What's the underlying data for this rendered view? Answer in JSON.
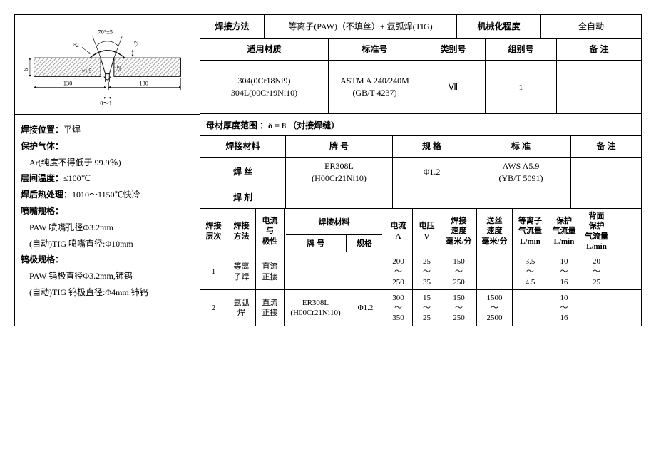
{
  "diagram": {
    "angle_label": "70°±5",
    "gap_top_left": "≈2",
    "tol_le2_right": "≤2",
    "height_6": "6",
    "gap_1_5": "≈1.5",
    "tol_le5": "≤5",
    "dim_130_left": "130",
    "dim_130_right": "130",
    "root_gap": "0～1",
    "hatch_color": "#888",
    "line_color": "#000",
    "text_fontsize": 9
  },
  "header": {
    "weld_method_label": "焊接方法",
    "weld_method_value": "等离子(PAW)（不填丝）+ 氩弧焊(TIG)",
    "mech_label": "机械化程度",
    "mech_value": "全自动",
    "material_label": "适用材质",
    "std_no_label": "标准号",
    "class_no_label": "类别号",
    "group_no_label": "组别号",
    "remark_label": "备 注",
    "material_value": "304(0Cr18Ni9)\n304L(00Cr19Ni10)",
    "std_no_value": "ASTM A 240/240M\n(GB/T 4237)",
    "class_no_value": "Ⅶ",
    "group_no_value": "1",
    "remark_value": ""
  },
  "notes": {
    "lines": [
      {
        "b": "焊接位置：",
        "t": "平焊"
      },
      {
        "b": "保护气体：",
        "t": ""
      },
      {
        "b": "",
        "t": "　Ar(纯度不得低于 99.9％)"
      },
      {
        "b": "层间温度：",
        "t": "≤100℃"
      },
      {
        "b": "焊后热处理：",
        "t": "1010～1150℃快冷"
      },
      {
        "b": "喷嘴规格：",
        "t": ""
      },
      {
        "b": "",
        "t": "　PAW 喷嘴孔径Φ3.2mm"
      },
      {
        "b": "",
        "t": "　(自动)TIG 喷嘴直径:Φ10mm"
      },
      {
        "b": "钨极规格：",
        "t": ""
      },
      {
        "b": "",
        "t": "　PAW 钨极直径Φ3.2mm,铈钨"
      },
      {
        "b": "",
        "t": "　(自动)TIG 钨极直径:Φ4mm 铈钨"
      }
    ]
  },
  "midband": {
    "thickness_row": "母材厚度范围 ：δ = 8 （对接焊缝）",
    "columns": {
      "weld_mat": "焊接材料",
      "brand": "牌 号",
      "spec": "规 格",
      "std": "标 准",
      "remark": "备 注"
    },
    "wire_label": "焊 丝",
    "wire_brand": "ER308L\n(H00Cr21Ni10)",
    "wire_spec": "Φ1.2",
    "wire_std": "AWS A5.9\n(YB/T 5091)",
    "wire_remark": "",
    "flux_label": "焊 剂",
    "flux_brand": "",
    "flux_spec": "",
    "flux_std": "",
    "flux_remark": ""
  },
  "params": {
    "head": {
      "layer": "焊接\n层次",
      "method": "焊接\n方法",
      "polarity": "电流\n与\n极性",
      "material": "焊接材料",
      "brand": "牌 号",
      "spec": "规格",
      "amp": "电流\nA",
      "volt": "电压\nV",
      "weld_speed": "焊接\n速度\n毫米/分",
      "feed_speed": "送丝\n速度\n毫米/分",
      "plasma_gas": "等离子\n气流量\nL/min",
      "shield_gas": "保护\n气流量\nL/min",
      "back_gas": "背面\n保护\n气流量\nL/min"
    },
    "rows": [
      {
        "layer": "1",
        "method": "等离\n子焊",
        "polarity": "直流\n正接",
        "brand": "",
        "spec": "",
        "amp": "200\n～\n250",
        "volt": "25\n～\n35",
        "weld_speed": "150\n～\n250",
        "feed_speed": "",
        "plasma_gas": "3.5\n～\n4.5",
        "shield_gas": "10\n～\n16",
        "back_gas": "20\n～\n25"
      },
      {
        "layer": "2",
        "method": "氩弧\n焊",
        "polarity": "直流\n正接",
        "brand": "ER308L\n(H00Cr21Ni10)",
        "spec": "Φ1.2",
        "amp": "300\n～\n350",
        "volt": "15\n～\n25",
        "weld_speed": "150\n～\n250",
        "feed_speed": "1500\n～\n2500",
        "plasma_gas": "",
        "shield_gas": "10\n～\n16",
        "back_gas": ""
      }
    ]
  }
}
